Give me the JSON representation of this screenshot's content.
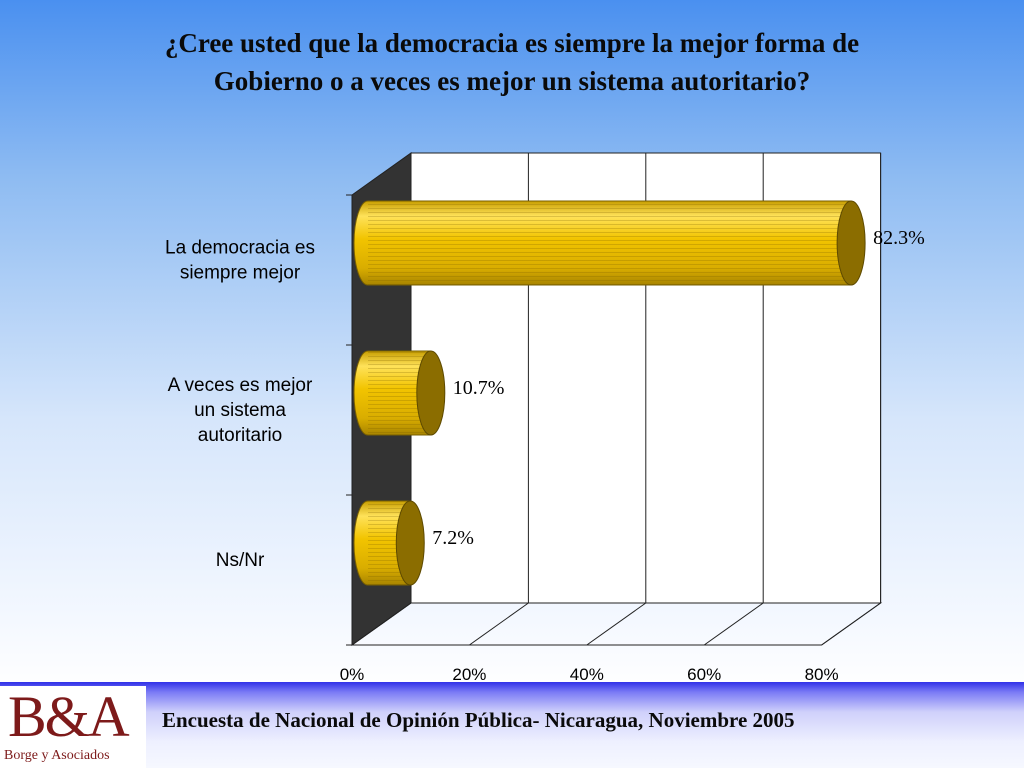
{
  "title": {
    "line1": "¿Cree usted que la democracia es siempre la mejor forma de",
    "line2": "Gobierno o a veces es mejor un sistema autoritario?"
  },
  "chart_data": {
    "type": "bar",
    "orientation": "horizontal",
    "style": "3d-cylinder",
    "categories": [
      [
        "La democracia es",
        "siempre mejor"
      ],
      [
        "A veces es mejor",
        "un sistema",
        "autoritario"
      ],
      [
        "Ns/Nr"
      ]
    ],
    "values": [
      82.3,
      10.7,
      7.2
    ],
    "value_labels": [
      "82.3%",
      "10.7%",
      "7.2%"
    ],
    "x_ticks": [
      "0%",
      "20%",
      "40%",
      "60%",
      "80%"
    ],
    "xlim": [
      0,
      80
    ],
    "grid": true,
    "colors": {
      "bar_face": "#f2c400",
      "bar_light": "#ffe25a",
      "bar_dark": "#a88400",
      "bar_cap": "#8b6d00",
      "wall_left": "#333333",
      "wall_back": "#ffffff",
      "grid": "#222222"
    }
  },
  "footer": {
    "logo_mark": "B&A",
    "logo_sub": "Borge y Asociados",
    "text": "Encuesta de Nacional de Opinión Pública- Nicaragua, Noviembre 2005"
  }
}
